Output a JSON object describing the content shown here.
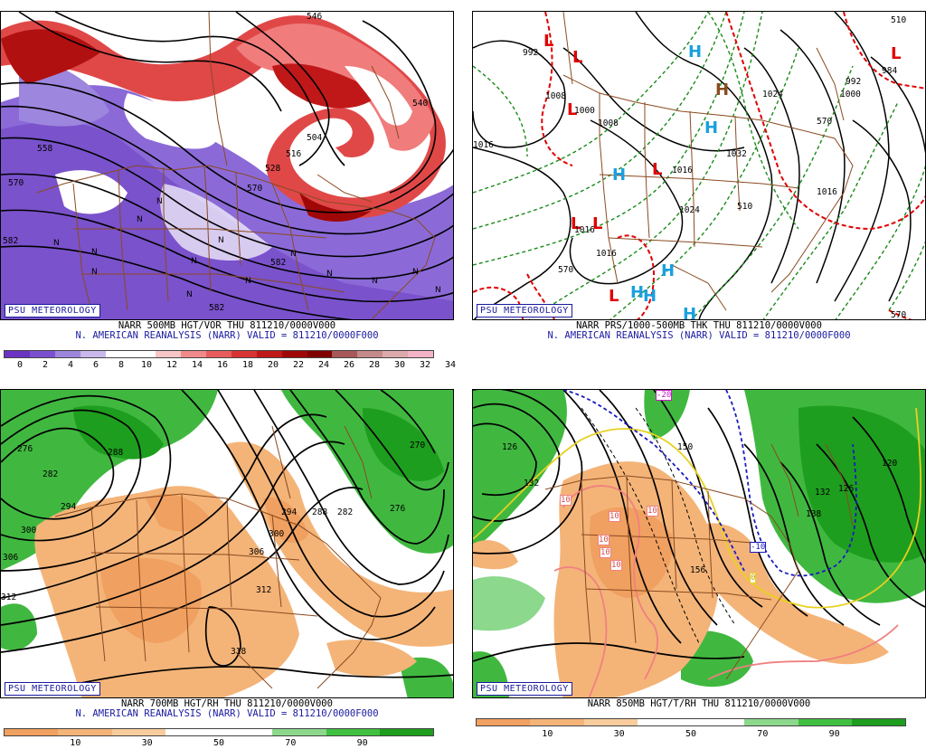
{
  "badge": "PSU METEOROLOGY",
  "panels": [
    {
      "id": "tl",
      "title_line1": "NARR 500MB HGT/VOR THU 811210/0000V000",
      "title_line2": "N. AMERICAN REANALYSIS (NARR) VALID = 811210/0000F000",
      "colorbar": {
        "colors": [
          "#6a33c4",
          "#7b50d0",
          "#9c86dc",
          "#c8b8ec",
          "#ffffff",
          "#ffffff",
          "#f7c6c6",
          "#f08a8a",
          "#e85c5c",
          "#d83434",
          "#c01818",
          "#a00808",
          "#800000",
          "#a85858",
          "#c48a8a",
          "#dcaaaa",
          "#f4b4c8"
        ],
        "labels": [
          "0",
          "2",
          "4",
          "6",
          "8",
          "10",
          "12",
          "14",
          "16",
          "18",
          "20",
          "22",
          "24",
          "26",
          "28",
          "30",
          "32",
          "34"
        ]
      },
      "contour_labels": [
        "546",
        "558",
        "570",
        "582",
        "504",
        "516",
        "528",
        "540",
        "570",
        "582",
        "582"
      ]
    },
    {
      "id": "tr",
      "title_line1": "NARR PRS/1000-500MB THK THU 811210/0000V000",
      "title_line2": "N. AMERICAN REANALYSIS (NARR) VALID = 811210/0000F000",
      "centers": [
        {
          "type": "L",
          "color": "#e00000"
        },
        {
          "type": "L",
          "color": "#e00000"
        },
        {
          "type": "L",
          "color": "#e00000"
        },
        {
          "type": "L",
          "color": "#e00000"
        },
        {
          "type": "L",
          "color": "#e00000"
        },
        {
          "type": "L",
          "color": "#e00000"
        },
        {
          "type": "L",
          "color": "#e00000"
        },
        {
          "type": "L",
          "color": "#e00000"
        },
        {
          "type": "H",
          "color": "#1aa0e0"
        },
        {
          "type": "H",
          "color": "#1aa0e0"
        },
        {
          "type": "H",
          "color": "#1aa0e0"
        },
        {
          "type": "H",
          "color": "#1aa0e0"
        },
        {
          "type": "H",
          "color": "#1aa0e0"
        },
        {
          "type": "H",
          "color": "#1aa0e0"
        },
        {
          "type": "H",
          "color": "#1aa0e0"
        },
        {
          "type": "H",
          "color": "#1aa0e0"
        }
      ],
      "contour_labels": [
        "992",
        "1008",
        "1000",
        "1008",
        "1016",
        "1016",
        "1024",
        "1016",
        "1016",
        "1032",
        "1024",
        "1000",
        "992",
        "984",
        "1016",
        "510",
        "570",
        "570",
        "570",
        "510"
      ]
    },
    {
      "id": "bl",
      "title_line1": "NARR 700MB HGT/RH THU 811210/0000V000",
      "title_line2": "N. AMERICAN REANALYSIS (NARR) VALID = 811210/0000F000",
      "colorbar": {
        "colors": [
          "#f0a060",
          "#f4b478",
          "#f8cc9c",
          "#ffffff",
          "#ffffff",
          "#8cd88c",
          "#40c040",
          "#1e9e1e"
        ],
        "labels": [
          "10",
          "30",
          "50",
          "70",
          "90"
        ]
      },
      "contour_labels": [
        "276",
        "288",
        "282",
        "294",
        "300",
        "306",
        "312",
        "318",
        "312",
        "306",
        "300",
        "294",
        "288",
        "282",
        "276",
        "270"
      ]
    },
    {
      "id": "br",
      "title_line1": "NARR 850MB HGT/T/RH THU 811210/0000V000",
      "title_line2": "",
      "colorbar": {
        "colors": [
          "#f0a060",
          "#f4b478",
          "#f8cc9c",
          "#ffffff",
          "#ffffff",
          "#8cd88c",
          "#40c040",
          "#1e9e1e"
        ],
        "labels": [
          "10",
          "30",
          "50",
          "70",
          "90"
        ]
      },
      "contour_labels": [
        "126",
        "132",
        "150",
        "156",
        "138",
        "132",
        "126",
        "120",
        "-20",
        "-10",
        "0",
        "10",
        "10",
        "10",
        "10",
        "10",
        "10"
      ]
    }
  ]
}
